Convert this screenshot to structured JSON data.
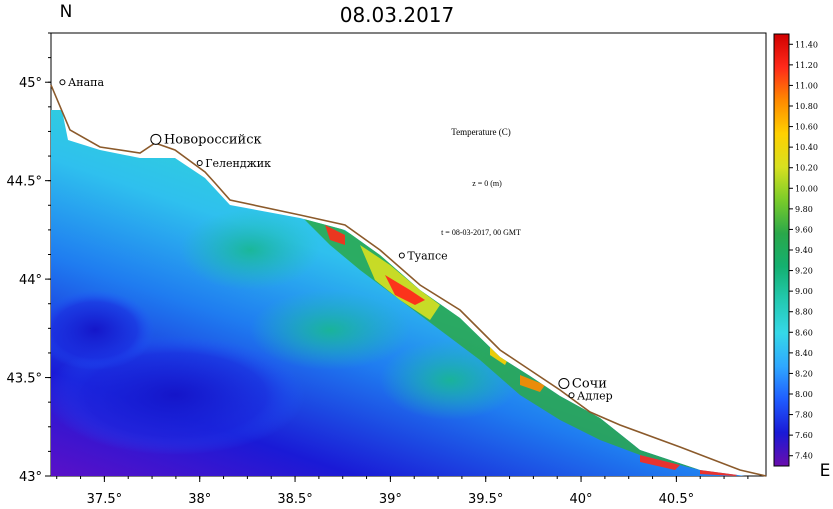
{
  "map": {
    "title": "08.03.2017",
    "north_label": "N",
    "east_label": "E",
    "annotations": {
      "variable": "Temperature (C)",
      "depth": "z = 0 (m)",
      "time": "t = 08-03-2017, 00 GMT"
    },
    "latitude_ticks": [
      {
        "value": 45.0,
        "label": "45°"
      },
      {
        "value": 44.5,
        "label": "44.5°"
      },
      {
        "value": 44.0,
        "label": "44°"
      },
      {
        "value": 43.5,
        "label": "43.5°"
      },
      {
        "value": 43.0,
        "label": "43°"
      }
    ],
    "longitude_ticks": [
      {
        "value": 37.5,
        "label": "37.5°"
      },
      {
        "value": 38.0,
        "label": "38°"
      },
      {
        "value": 38.5,
        "label": "38.5°"
      },
      {
        "value": 39.0,
        "label": "39°"
      },
      {
        "value": 39.5,
        "label": "39.5°"
      },
      {
        "value": 40.0,
        "label": "40°"
      },
      {
        "value": 40.5,
        "label": "40.5°"
      }
    ],
    "lon_range": [
      37.22,
      40.97
    ],
    "lat_range": [
      43.0,
      45.25
    ],
    "cities": [
      {
        "name": "Анапа",
        "lon": 37.28,
        "lat": 45.0,
        "marker": "small"
      },
      {
        "name": "Новороссийск",
        "lon": 37.77,
        "lat": 44.71,
        "marker": "large"
      },
      {
        "name": "Геленджик",
        "lon": 38.0,
        "lat": 44.59,
        "marker": "small"
      },
      {
        "name": "Туапсе",
        "lon": 39.06,
        "lat": 44.12,
        "marker": "small"
      },
      {
        "name": "Сочи",
        "lon": 39.91,
        "lat": 43.47,
        "marker": "large"
      },
      {
        "name": "Адлер",
        "lon": 39.95,
        "lat": 43.41,
        "marker": "small"
      }
    ],
    "colorbar": {
      "unit": "Temperature (C)",
      "min": 7.3,
      "max": 11.5,
      "labels": [
        "11.40",
        "11.20",
        "11.00",
        "10.80",
        "10.60",
        "10.40",
        "10.20",
        "10.00",
        "9.80",
        "9.60",
        "9.40",
        "9.20",
        "9.00",
        "8.80",
        "8.60",
        "8.40",
        "8.20",
        "8.00",
        "7.80",
        "7.60",
        "7.40"
      ],
      "colors": [
        "#6a0dad",
        "#1a1ad6",
        "#1f5cff",
        "#2fa8ff",
        "#35d8e8",
        "#23c9b0",
        "#14b070",
        "#2aa84a",
        "#7acc2a",
        "#d8e020",
        "#ffd000",
        "#ff8a00",
        "#ff2a1a",
        "#d00000"
      ]
    },
    "colors": {
      "coastline": "#8b5a2b",
      "land": "#ffffff",
      "frame": "#000000"
    }
  }
}
